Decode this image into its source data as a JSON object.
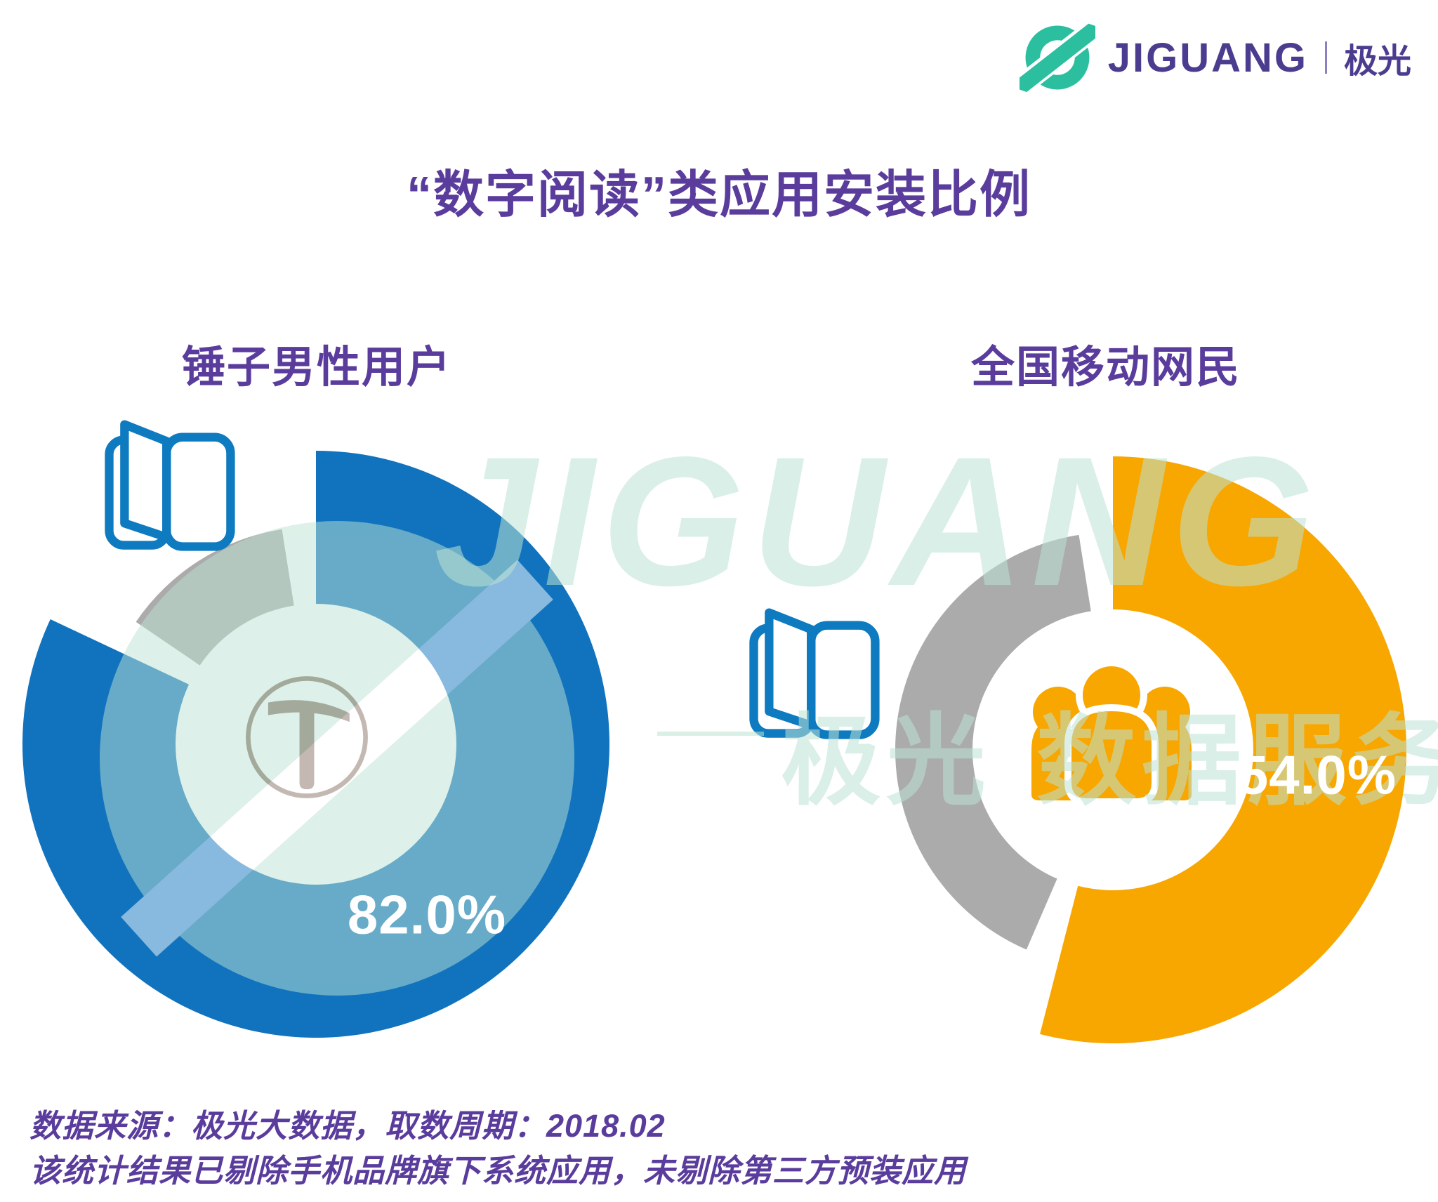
{
  "page": {
    "title": "“数字阅读”类应用安装比例",
    "background": "#FFFFFF"
  },
  "logo": {
    "name_en": "JIGUANG",
    "name_cn": "极光",
    "mark_color": "#2CBF9F",
    "text_color": "#4B3C8F"
  },
  "watermark": {
    "text_en": "JIGUANG",
    "text_cn_left": "极光",
    "text_cn_right": "数据服务",
    "color": "#BCE3D4"
  },
  "chart_data": {
    "type": "pie",
    "donut": true,
    "title": "“数字阅读”类应用安装比例",
    "start": "top",
    "direction": "clockwise",
    "remainder_color": "#ABABAB",
    "series": [
      {
        "name": "锤子男性用户",
        "value": 82.0,
        "label": "82.0%",
        "color": "#1173BD",
        "center_icon": "smartisan-hammer"
      },
      {
        "name": "全国移动网民",
        "value": 54.0,
        "label": "54.0%",
        "color": "#F8A600",
        "center_icon": "people-group"
      }
    ],
    "legend_position": "above-each-donut",
    "grid": false
  },
  "icons": {
    "book_color": "#0E7AC0",
    "hammer_color": "#8A7164",
    "people_color": "#F8A600"
  },
  "footer": {
    "line1": "数据来源：极光大数据，取数周期：2018.02",
    "line2": "该统计结果已剔除手机品牌旗下系统应用，未剔除第三方预装应用"
  },
  "colors": {
    "title_purple": "#5A3C9C",
    "blue": "#1173BD",
    "orange": "#F8A600",
    "gray_ring": "#ABABAB",
    "logo_teal": "#2CBF9F",
    "watermark_green": "#BCE3D4"
  }
}
